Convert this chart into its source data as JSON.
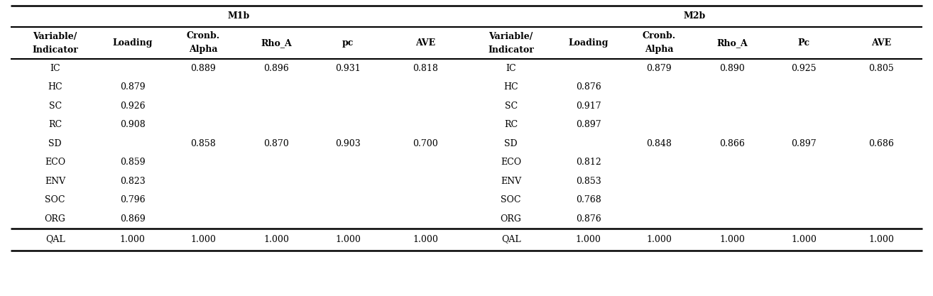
{
  "m1b_header": "M1b",
  "m2b_header": "M2b",
  "col_headers_m1b": [
    "Variable/\nIndicator",
    "Loading",
    "Cronb.\nAlpha",
    "Rho_A",
    "pc",
    "AVE"
  ],
  "col_headers_m2b": [
    "Variable/\nIndicator",
    "Loading",
    "Cronb.\nAlpha",
    "Rho_A",
    "Pc",
    "AVE"
  ],
  "rows": [
    [
      "IC",
      "",
      "0.889",
      "0.896",
      "0.931",
      "0.818",
      "IC",
      "",
      "0.879",
      "0.890",
      "0.925",
      "0.805"
    ],
    [
      "HC",
      "0.879",
      "",
      "",
      "",
      "",
      "HC",
      "0.876",
      "",
      "",
      "",
      ""
    ],
    [
      "SC",
      "0.926",
      "",
      "",
      "",
      "",
      "SC",
      "0.917",
      "",
      "",
      "",
      ""
    ],
    [
      "RC",
      "0.908",
      "",
      "",
      "",
      "",
      "RC",
      "0.897",
      "",
      "",
      "",
      ""
    ],
    [
      "SD",
      "",
      "0.858",
      "0.870",
      "0.903",
      "0.700",
      "SD",
      "",
      "0.848",
      "0.866",
      "0.897",
      "0.686"
    ],
    [
      "ECO",
      "0.859",
      "",
      "",
      "",
      "",
      "ECO",
      "0.812",
      "",
      "",
      "",
      ""
    ],
    [
      "ENV",
      "0.823",
      "",
      "",
      "",
      "",
      "ENV",
      "0.853",
      "",
      "",
      "",
      ""
    ],
    [
      "SOC",
      "0.796",
      "",
      "",
      "",
      "",
      "SOC",
      "0.768",
      "",
      "",
      "",
      ""
    ],
    [
      "ORG",
      "0.869",
      "",
      "",
      "",
      "",
      "ORG",
      "0.876",
      "",
      "",
      "",
      ""
    ]
  ],
  "footer_row": [
    "QAL",
    "1.000",
    "1.000",
    "1.000",
    "1.000",
    "1.000",
    "QAL",
    "1.000",
    "1.000",
    "1.000",
    "1.000",
    "1.000"
  ],
  "bg_color": "#ffffff",
  "text_color": "#000000",
  "font_size": 9.0,
  "header_font_size": 9.0,
  "fig_width": 13.14,
  "fig_height": 4.17,
  "dpi": 100
}
